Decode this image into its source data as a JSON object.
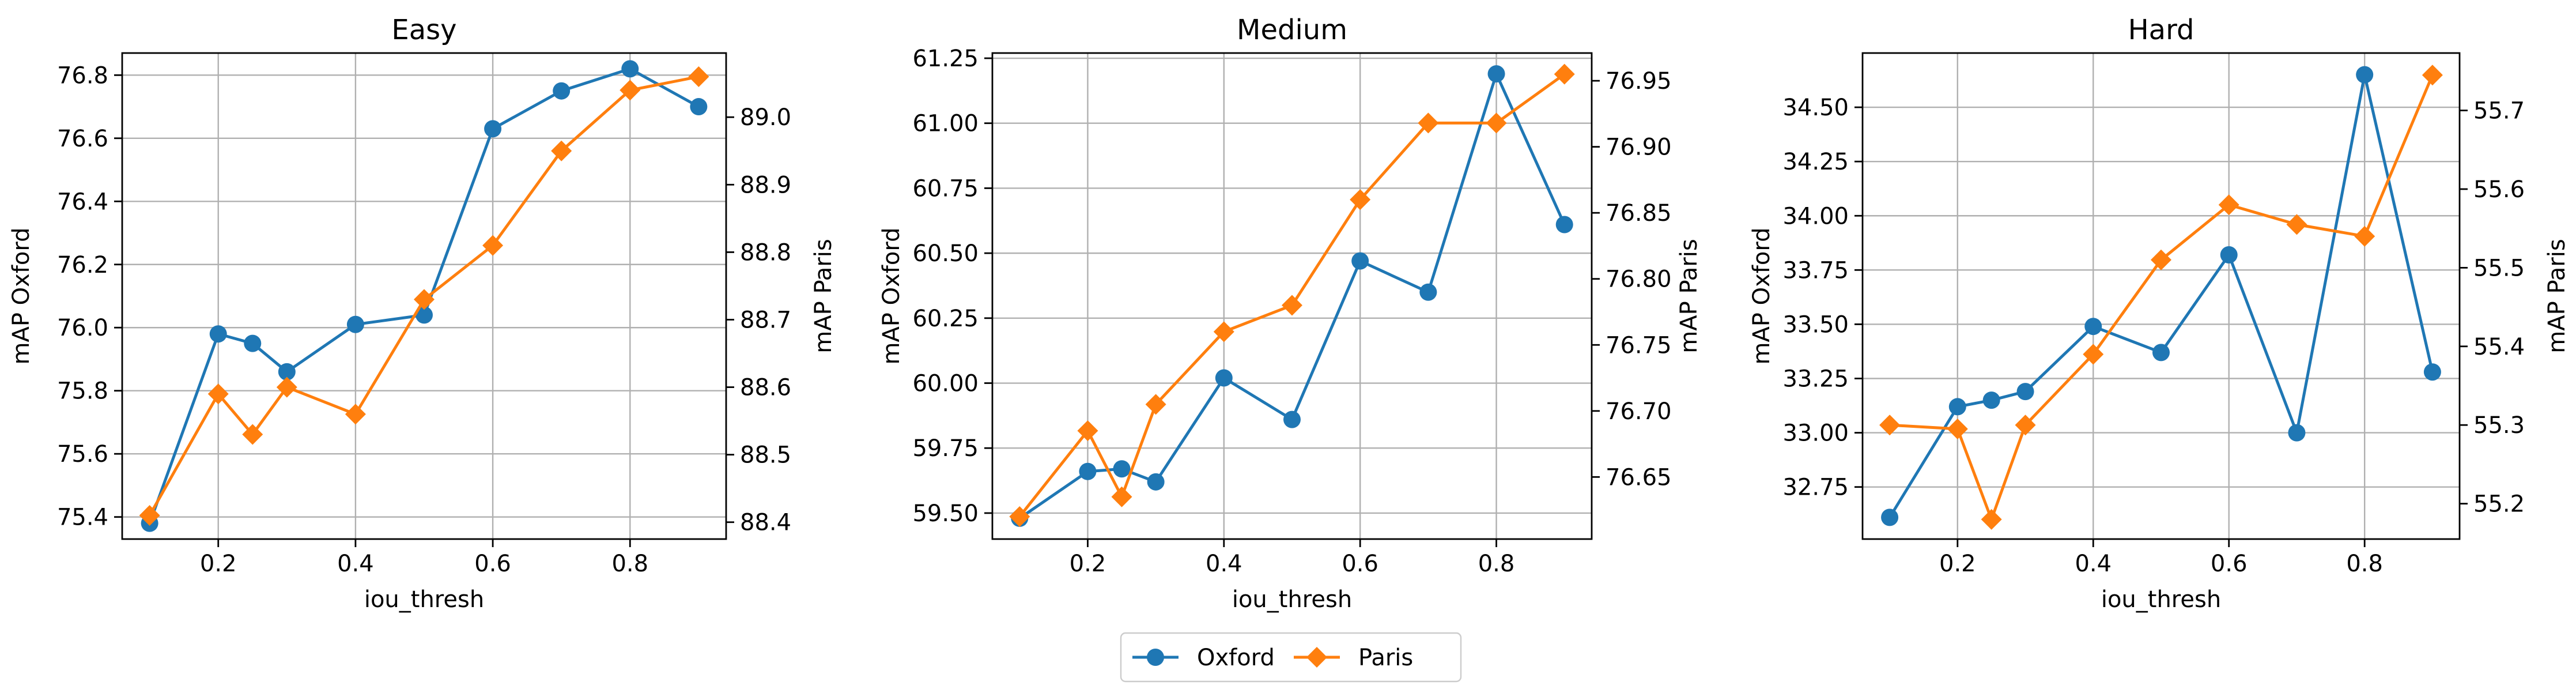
{
  "colors": {
    "oxford": "#1f77b4",
    "paris": "#ff7f0e",
    "grid": "#b0b0b0"
  },
  "legend": {
    "placement": "bottom-center",
    "items": [
      "Oxford",
      "Paris"
    ]
  },
  "chart_data": [
    {
      "type": "line",
      "title": "Easy",
      "xlabel": "iou_thresh",
      "ylabel_left": "mAP Oxford",
      "ylabel_right": "mAP Paris",
      "grid": true,
      "xlim": [
        0.06,
        0.94
      ],
      "xticks": [
        0.2,
        0.4,
        0.6,
        0.8
      ],
      "xtick_labels": [
        "0.2",
        "0.4",
        "0.6",
        "0.8"
      ],
      "x": [
        0.1,
        0.2,
        0.25,
        0.3,
        0.4,
        0.5,
        0.6,
        0.7,
        0.8,
        0.9
      ],
      "series": [
        {
          "name": "Oxford",
          "axis": "left",
          "marker": "circle",
          "values": [
            75.38,
            75.98,
            75.95,
            75.86,
            76.01,
            76.04,
            76.63,
            76.75,
            76.82,
            76.7
          ]
        },
        {
          "name": "Paris",
          "axis": "right",
          "marker": "diamond",
          "values": [
            88.41,
            88.59,
            88.53,
            88.6,
            88.56,
            88.73,
            88.81,
            88.95,
            89.04,
            89.06
          ]
        }
      ],
      "ylim_left": [
        75.33,
        76.87
      ],
      "yticks_left": [
        75.4,
        75.6,
        75.8,
        76.0,
        76.2,
        76.4,
        76.6,
        76.8
      ],
      "ytick_labels_left": [
        "75.4",
        "75.6",
        "75.8",
        "76.0",
        "76.2",
        "76.4",
        "76.6",
        "76.8"
      ],
      "ylim_right": [
        88.375,
        89.095
      ],
      "yticks_right": [
        88.4,
        88.5,
        88.6,
        88.7,
        88.8,
        88.9,
        89.0
      ],
      "ytick_labels_right": [
        "88.4",
        "88.5",
        "88.6",
        "88.7",
        "88.8",
        "88.9",
        "89.0"
      ]
    },
    {
      "type": "line",
      "title": "Medium",
      "xlabel": "iou_thresh",
      "ylabel_left": "mAP Oxford",
      "ylabel_right": "mAP Paris",
      "grid": true,
      "xlim": [
        0.06,
        0.94
      ],
      "xticks": [
        0.2,
        0.4,
        0.6,
        0.8
      ],
      "xtick_labels": [
        "0.2",
        "0.4",
        "0.6",
        "0.8"
      ],
      "x": [
        0.1,
        0.2,
        0.25,
        0.3,
        0.4,
        0.5,
        0.6,
        0.7,
        0.8,
        0.9
      ],
      "series": [
        {
          "name": "Oxford",
          "axis": "left",
          "marker": "circle",
          "values": [
            59.48,
            59.66,
            59.67,
            59.62,
            60.02,
            59.86,
            60.47,
            60.35,
            61.19,
            60.61
          ]
        },
        {
          "name": "Paris",
          "axis": "right",
          "marker": "diamond",
          "values": [
            76.62,
            76.685,
            76.635,
            76.705,
            76.76,
            76.78,
            76.86,
            76.918,
            76.918,
            76.955
          ]
        }
      ],
      "ylim_left": [
        59.4,
        61.27
      ],
      "yticks_left": [
        59.5,
        59.75,
        60.0,
        60.25,
        60.5,
        60.75,
        61.0,
        61.25
      ],
      "ytick_labels_left": [
        "59.50",
        "59.75",
        "60.00",
        "60.25",
        "60.50",
        "60.75",
        "61.00",
        "61.25"
      ],
      "ylim_right": [
        76.603,
        76.971
      ],
      "yticks_right": [
        76.65,
        76.7,
        76.75,
        76.8,
        76.85,
        76.9,
        76.95
      ],
      "ytick_labels_right": [
        "76.65",
        "76.70",
        "76.75",
        "76.80",
        "76.85",
        "76.90",
        "76.95"
      ]
    },
    {
      "type": "line",
      "title": "Hard",
      "xlabel": "iou_thresh",
      "ylabel_left": "mAP Oxford",
      "ylabel_right": "mAP Paris",
      "grid": true,
      "xlim": [
        0.06,
        0.94
      ],
      "xticks": [
        0.2,
        0.4,
        0.6,
        0.8
      ],
      "xtick_labels": [
        "0.2",
        "0.4",
        "0.6",
        "0.8"
      ],
      "x": [
        0.1,
        0.2,
        0.25,
        0.3,
        0.4,
        0.5,
        0.6,
        0.7,
        0.8,
        0.9
      ],
      "series": [
        {
          "name": "Oxford",
          "axis": "left",
          "marker": "circle",
          "values": [
            32.61,
            33.12,
            33.15,
            33.19,
            33.49,
            33.37,
            33.82,
            33.0,
            34.65,
            33.28
          ]
        },
        {
          "name": "Paris",
          "axis": "right",
          "marker": "diamond",
          "values": [
            55.3,
            55.295,
            55.18,
            55.3,
            55.39,
            55.51,
            55.58,
            55.555,
            55.54,
            55.745
          ]
        }
      ],
      "ylim_left": [
        32.51,
        34.75
      ],
      "yticks_left": [
        32.75,
        33.0,
        33.25,
        33.5,
        33.75,
        34.0,
        34.25,
        34.5
      ],
      "ytick_labels_left": [
        "32.75",
        "33.00",
        "33.25",
        "33.50",
        "33.75",
        "34.00",
        "34.25",
        "34.50"
      ],
      "ylim_right": [
        55.155,
        55.773
      ],
      "yticks_right": [
        55.2,
        55.3,
        55.4,
        55.5,
        55.6,
        55.7
      ],
      "ytick_labels_right": [
        "55.2",
        "55.3",
        "55.4",
        "55.5",
        "55.6",
        "55.7"
      ]
    }
  ]
}
